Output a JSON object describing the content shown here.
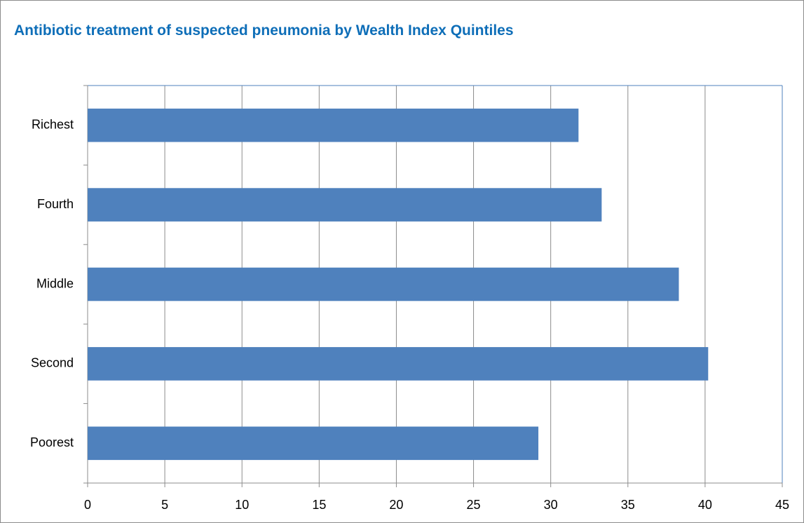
{
  "chart_data": {
    "type": "bar",
    "orientation": "horizontal",
    "title": "Antibiotic treatment of suspected pneumonia by Wealth Index Quintiles",
    "categories": [
      "Poorest",
      "Second",
      "Middle",
      "Fourth",
      "Richest"
    ],
    "values": [
      29.2,
      40.2,
      38.3,
      33.3,
      31.8
    ],
    "color": "#4f81bd",
    "xlim": [
      0,
      45
    ],
    "xticks": [
      0,
      5,
      10,
      15,
      20,
      25,
      30,
      35,
      40,
      45
    ],
    "grid": true
  }
}
